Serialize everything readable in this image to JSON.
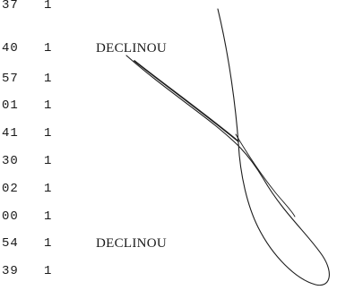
{
  "rows": [
    {
      "code": "37",
      "count": "1",
      "tag": ""
    },
    {
      "code": "40",
      "count": "1",
      "tag": "DECLINOU"
    },
    {
      "code": "57",
      "count": "1",
      "tag": ""
    },
    {
      "code": "01",
      "count": "1",
      "tag": ""
    },
    {
      "code": "41",
      "count": "1",
      "tag": ""
    },
    {
      "code": "30",
      "count": "1",
      "tag": ""
    },
    {
      "code": "02",
      "count": "1",
      "tag": ""
    },
    {
      "code": "00",
      "count": "1",
      "tag": ""
    },
    {
      "code": "54",
      "count": "1",
      "tag": "DECLINOU"
    },
    {
      "code": "39",
      "count": "1",
      "tag": ""
    }
  ]
}
